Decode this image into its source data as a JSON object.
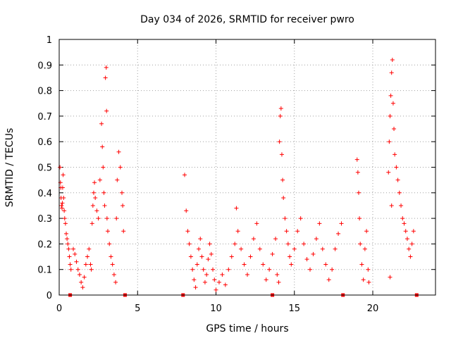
{
  "chart_data": {
    "type": "scatter",
    "title": "Day 034 of 2026, SRMTID for receiver pwro",
    "xlabel": "GPS time / hours",
    "ylabel": "SRMTID / TECUs",
    "xlim": [
      0,
      24
    ],
    "ylim": [
      0,
      1
    ],
    "xticks": [
      0,
      5,
      10,
      15,
      20
    ],
    "yticks": [
      0,
      0.1,
      0.2,
      0.3,
      0.4,
      0.5,
      0.6,
      0.7,
      0.8,
      0.9,
      1
    ],
    "xtick_labels": [
      "0",
      "5",
      "10",
      "15",
      "20"
    ],
    "ytick_labels": [
      "0",
      "0.1",
      "0.2",
      "0.3",
      "0.4",
      "0.5",
      "0.6",
      "0.7",
      "0.8",
      "0.9",
      "1"
    ],
    "grid": true,
    "marker": "plus",
    "color": "#ff0000",
    "series": [
      {
        "name": "SRMTID",
        "points": [
          [
            0.05,
            0.5
          ],
          [
            0.08,
            0.44
          ],
          [
            0.1,
            0.42
          ],
          [
            0.12,
            0.38
          ],
          [
            0.15,
            0.35
          ],
          [
            0.18,
            0.34
          ],
          [
            0.2,
            0.36
          ],
          [
            0.22,
            0.42
          ],
          [
            0.25,
            0.47
          ],
          [
            0.28,
            0.38
          ],
          [
            0.32,
            0.33
          ],
          [
            0.35,
            0.3
          ],
          [
            0.4,
            0.28
          ],
          [
            0.45,
            0.24
          ],
          [
            0.5,
            0.22
          ],
          [
            0.55,
            0.2
          ],
          [
            0.6,
            0.18
          ],
          [
            0.65,
            0.15
          ],
          [
            0.7,
            0.12
          ],
          [
            0.75,
            0.1
          ],
          [
            0.9,
            0.18
          ],
          [
            1.0,
            0.16
          ],
          [
            1.1,
            0.13
          ],
          [
            1.2,
            0.1
          ],
          [
            1.3,
            0.08
          ],
          [
            1.4,
            0.05
          ],
          [
            1.5,
            0.03
          ],
          [
            1.6,
            0.07
          ],
          [
            1.7,
            0.12
          ],
          [
            1.8,
            0.15
          ],
          [
            1.9,
            0.18
          ],
          [
            2.0,
            0.12
          ],
          [
            2.05,
            0.1
          ],
          [
            2.1,
            0.28
          ],
          [
            2.15,
            0.35
          ],
          [
            2.2,
            0.4
          ],
          [
            2.25,
            0.44
          ],
          [
            2.3,
            0.38
          ],
          [
            2.4,
            0.33
          ],
          [
            2.5,
            0.3
          ],
          [
            2.6,
            0.45
          ],
          [
            2.7,
            0.67
          ],
          [
            2.75,
            0.58
          ],
          [
            2.8,
            0.5
          ],
          [
            2.85,
            0.4
          ],
          [
            2.9,
            0.35
          ],
          [
            2.95,
            0.85
          ],
          [
            3.0,
            0.89
          ],
          [
            3.02,
            0.72
          ],
          [
            3.05,
            0.3
          ],
          [
            3.1,
            0.25
          ],
          [
            3.2,
            0.2
          ],
          [
            3.3,
            0.15
          ],
          [
            3.4,
            0.12
          ],
          [
            3.5,
            0.08
          ],
          [
            3.6,
            0.05
          ],
          [
            3.65,
            0.3
          ],
          [
            3.7,
            0.45
          ],
          [
            3.8,
            0.56
          ],
          [
            3.9,
            0.5
          ],
          [
            4.0,
            0.4
          ],
          [
            4.05,
            0.35
          ],
          [
            4.1,
            0.25
          ],
          [
            8.0,
            0.47
          ],
          [
            8.1,
            0.33
          ],
          [
            8.2,
            0.25
          ],
          [
            8.3,
            0.2
          ],
          [
            8.4,
            0.15
          ],
          [
            8.5,
            0.1
          ],
          [
            8.6,
            0.06
          ],
          [
            8.7,
            0.03
          ],
          [
            8.8,
            0.12
          ],
          [
            8.9,
            0.18
          ],
          [
            9.0,
            0.22
          ],
          [
            9.1,
            0.15
          ],
          [
            9.2,
            0.1
          ],
          [
            9.3,
            0.05
          ],
          [
            9.4,
            0.08
          ],
          [
            9.5,
            0.14
          ],
          [
            9.6,
            0.2
          ],
          [
            9.7,
            0.16
          ],
          [
            9.8,
            0.1
          ],
          [
            9.9,
            0.06
          ],
          [
            10.0,
            0.02
          ],
          [
            10.2,
            0.05
          ],
          [
            10.4,
            0.08
          ],
          [
            10.6,
            0.04
          ],
          [
            10.8,
            0.1
          ],
          [
            11.0,
            0.15
          ],
          [
            11.2,
            0.2
          ],
          [
            11.3,
            0.34
          ],
          [
            11.4,
            0.25
          ],
          [
            11.6,
            0.18
          ],
          [
            11.8,
            0.12
          ],
          [
            12.0,
            0.08
          ],
          [
            12.2,
            0.15
          ],
          [
            12.4,
            0.22
          ],
          [
            12.6,
            0.28
          ],
          [
            12.8,
            0.18
          ],
          [
            13.0,
            0.12
          ],
          [
            13.2,
            0.06
          ],
          [
            13.4,
            0.1
          ],
          [
            13.6,
            0.16
          ],
          [
            13.8,
            0.22
          ],
          [
            13.9,
            0.08
          ],
          [
            14.0,
            0.05
          ],
          [
            14.05,
            0.6
          ],
          [
            14.1,
            0.7
          ],
          [
            14.15,
            0.73
          ],
          [
            14.2,
            0.55
          ],
          [
            14.25,
            0.45
          ],
          [
            14.3,
            0.38
          ],
          [
            14.4,
            0.3
          ],
          [
            14.5,
            0.25
          ],
          [
            14.6,
            0.2
          ],
          [
            14.7,
            0.15
          ],
          [
            14.8,
            0.12
          ],
          [
            15.0,
            0.18
          ],
          [
            15.2,
            0.25
          ],
          [
            15.4,
            0.3
          ],
          [
            15.6,
            0.2
          ],
          [
            15.8,
            0.14
          ],
          [
            16.0,
            0.1
          ],
          [
            16.2,
            0.16
          ],
          [
            16.4,
            0.22
          ],
          [
            16.6,
            0.28
          ],
          [
            16.8,
            0.18
          ],
          [
            17.0,
            0.12
          ],
          [
            17.2,
            0.06
          ],
          [
            17.4,
            0.1
          ],
          [
            17.6,
            0.18
          ],
          [
            17.8,
            0.24
          ],
          [
            18.0,
            0.28
          ],
          [
            19.0,
            0.53
          ],
          [
            19.05,
            0.48
          ],
          [
            19.1,
            0.4
          ],
          [
            19.15,
            0.3
          ],
          [
            19.2,
            0.2
          ],
          [
            19.3,
            0.12
          ],
          [
            19.4,
            0.06
          ],
          [
            19.5,
            0.18
          ],
          [
            19.6,
            0.25
          ],
          [
            19.7,
            0.1
          ],
          [
            19.75,
            0.05
          ],
          [
            21.0,
            0.48
          ],
          [
            21.05,
            0.6
          ],
          [
            21.1,
            0.7
          ],
          [
            21.15,
            0.78
          ],
          [
            21.2,
            0.87
          ],
          [
            21.25,
            0.92
          ],
          [
            21.3,
            0.75
          ],
          [
            21.35,
            0.65
          ],
          [
            21.4,
            0.55
          ],
          [
            21.5,
            0.5
          ],
          [
            21.6,
            0.45
          ],
          [
            21.7,
            0.4
          ],
          [
            21.8,
            0.35
          ],
          [
            21.9,
            0.3
          ],
          [
            22.0,
            0.28
          ],
          [
            22.1,
            0.25
          ],
          [
            22.2,
            0.22
          ],
          [
            22.3,
            0.18
          ],
          [
            22.4,
            0.15
          ],
          [
            22.5,
            0.2
          ],
          [
            22.6,
            0.25
          ],
          [
            21.1,
            0.07
          ],
          [
            21.2,
            0.35
          ]
        ]
      }
    ],
    "baseline_markers": [
      {
        "x": 0.7,
        "y": 0
      },
      {
        "x": 4.2,
        "y": 0
      },
      {
        "x": 7.9,
        "y": 0
      },
      {
        "x": 13.6,
        "y": 0
      },
      {
        "x": 18.1,
        "y": 0
      },
      {
        "x": 22.8,
        "y": 0
      }
    ]
  }
}
